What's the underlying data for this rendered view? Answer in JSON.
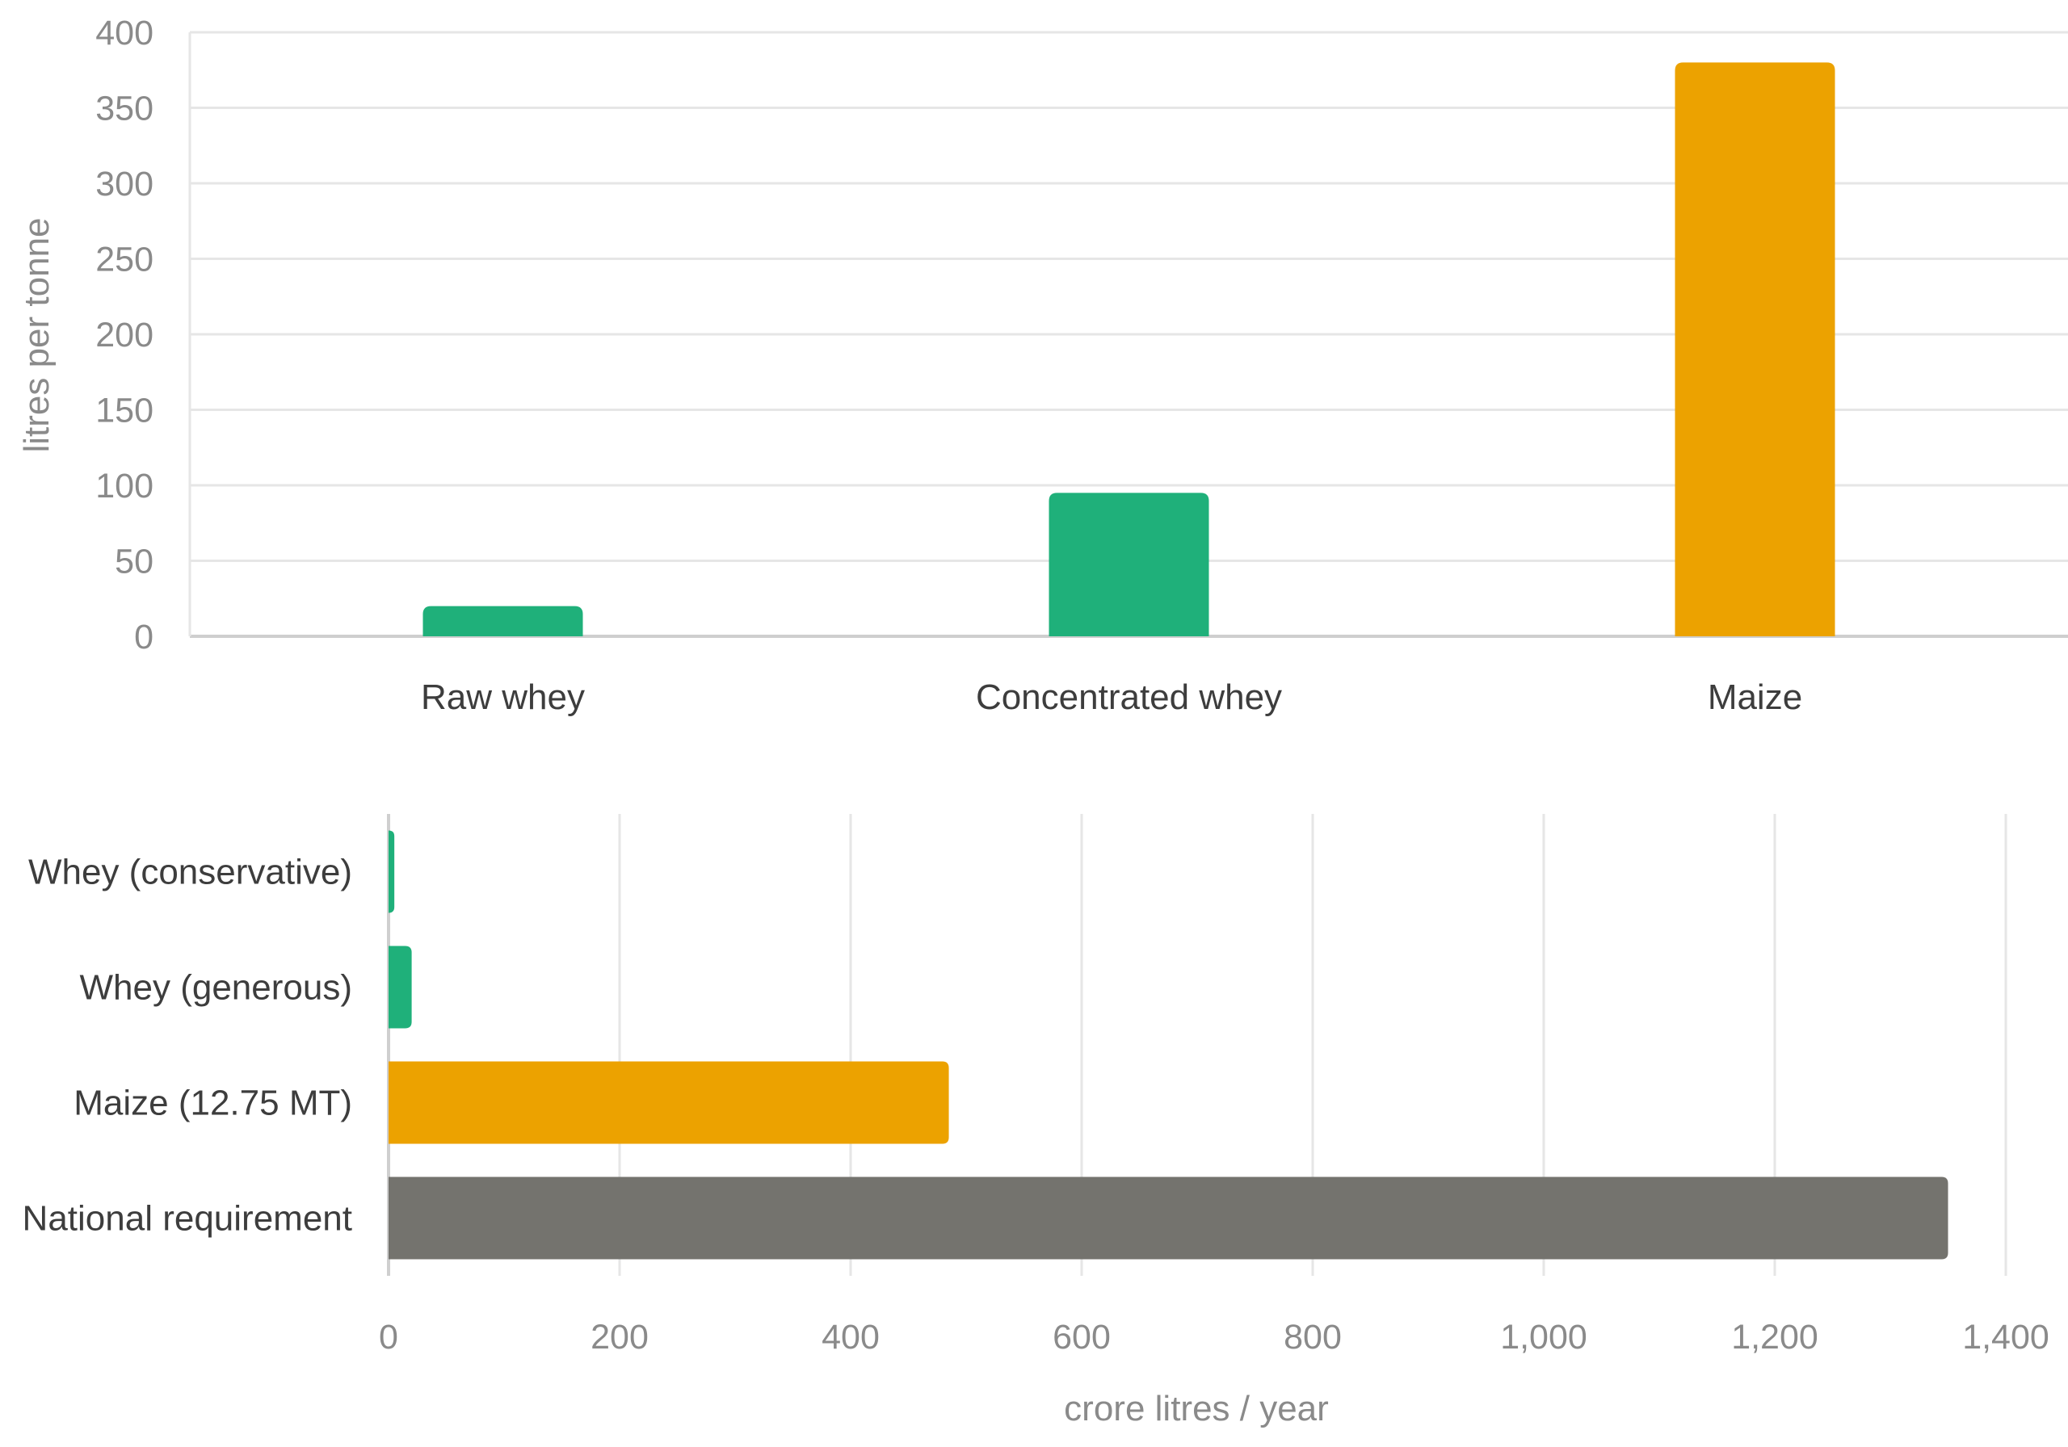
{
  "chart_data": [
    {
      "type": "bar",
      "orientation": "vertical",
      "categories": [
        "Raw whey",
        "Concentrated whey",
        "Maize"
      ],
      "values": [
        20,
        95,
        380
      ],
      "colors": [
        "#1fb07a",
        "#1fb07a",
        "#eca200"
      ],
      "ylabel": "litres per tonne",
      "ylim": [
        0,
        400
      ],
      "yticks": [
        "0",
        "50",
        "100",
        "150",
        "200",
        "250",
        "300",
        "350",
        "400"
      ],
      "grid": true
    },
    {
      "type": "bar",
      "orientation": "horizontal",
      "categories": [
        "Whey (conservative)",
        "Whey (generous)",
        "Maize (12.75 MT)",
        "National requirement"
      ],
      "values": [
        5,
        20,
        485,
        1350
      ],
      "colors": [
        "#1fb07a",
        "#1fb07a",
        "#eca200",
        "#74736e"
      ],
      "xlabel": "crore litres / year",
      "xlim": [
        0,
        1400
      ],
      "xticks": [
        "0",
        "200",
        "400",
        "600",
        "800",
        "1,000",
        "1,200",
        "1,400"
      ],
      "grid": true
    }
  ]
}
